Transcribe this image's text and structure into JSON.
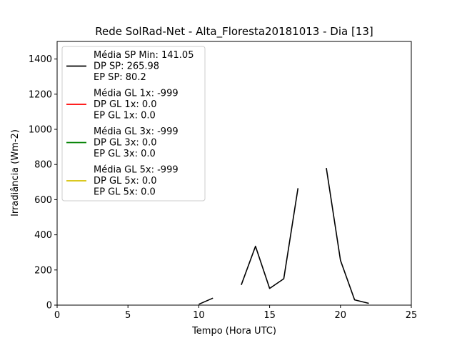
{
  "chart_data": {
    "type": "line",
    "title": "Rede SolRad-Net - Alta_Floresta20181013 - Dia [13]",
    "xlabel": "Tempo (Hora UTC)",
    "ylabel": "Irradiância (Wm-2)",
    "xlim": [
      0,
      25
    ],
    "ylim": [
      0,
      1500
    ],
    "xticks": [
      0,
      5,
      10,
      15,
      20,
      25
    ],
    "yticks": [
      0,
      200,
      400,
      600,
      800,
      1000,
      1200,
      1400
    ],
    "grid": false,
    "legend_position": "top-left",
    "series": [
      {
        "color": "#000000",
        "segments": [
          [
            [
              10,
              5
            ],
            [
              11,
              40
            ]
          ],
          [
            [
              13,
              115
            ],
            [
              14,
              335
            ],
            [
              15,
              95
            ],
            [
              16,
              150
            ],
            [
              17,
              665
            ]
          ],
          [
            [
              19,
              780
            ],
            [
              20,
              255
            ],
            [
              21,
              30
            ],
            [
              22,
              10
            ]
          ]
        ]
      },
      {
        "color": "#ff0000",
        "segments": []
      },
      {
        "color": "#008000",
        "segments": []
      },
      {
        "color": "#d4c000",
        "segments": []
      }
    ],
    "legend": [
      {
        "color": "#000000",
        "lines": [
          "Média SP Min: 141.05",
          "DP SP: 265.98",
          "EP SP: 80.2"
        ]
      },
      {
        "color": "#ff0000",
        "lines": [
          "Média GL 1x: -999",
          "DP GL 1x: 0.0",
          "EP GL 1x: 0.0"
        ]
      },
      {
        "color": "#008000",
        "lines": [
          "Média GL 3x: -999",
          "DP GL 3x: 0.0",
          "EP GL 3x: 0.0"
        ]
      },
      {
        "color": "#d4c000",
        "lines": [
          "Média GL 5x: -999",
          "DP GL 5x: 0.0",
          "EP GL 5x: 0.0"
        ]
      }
    ]
  }
}
